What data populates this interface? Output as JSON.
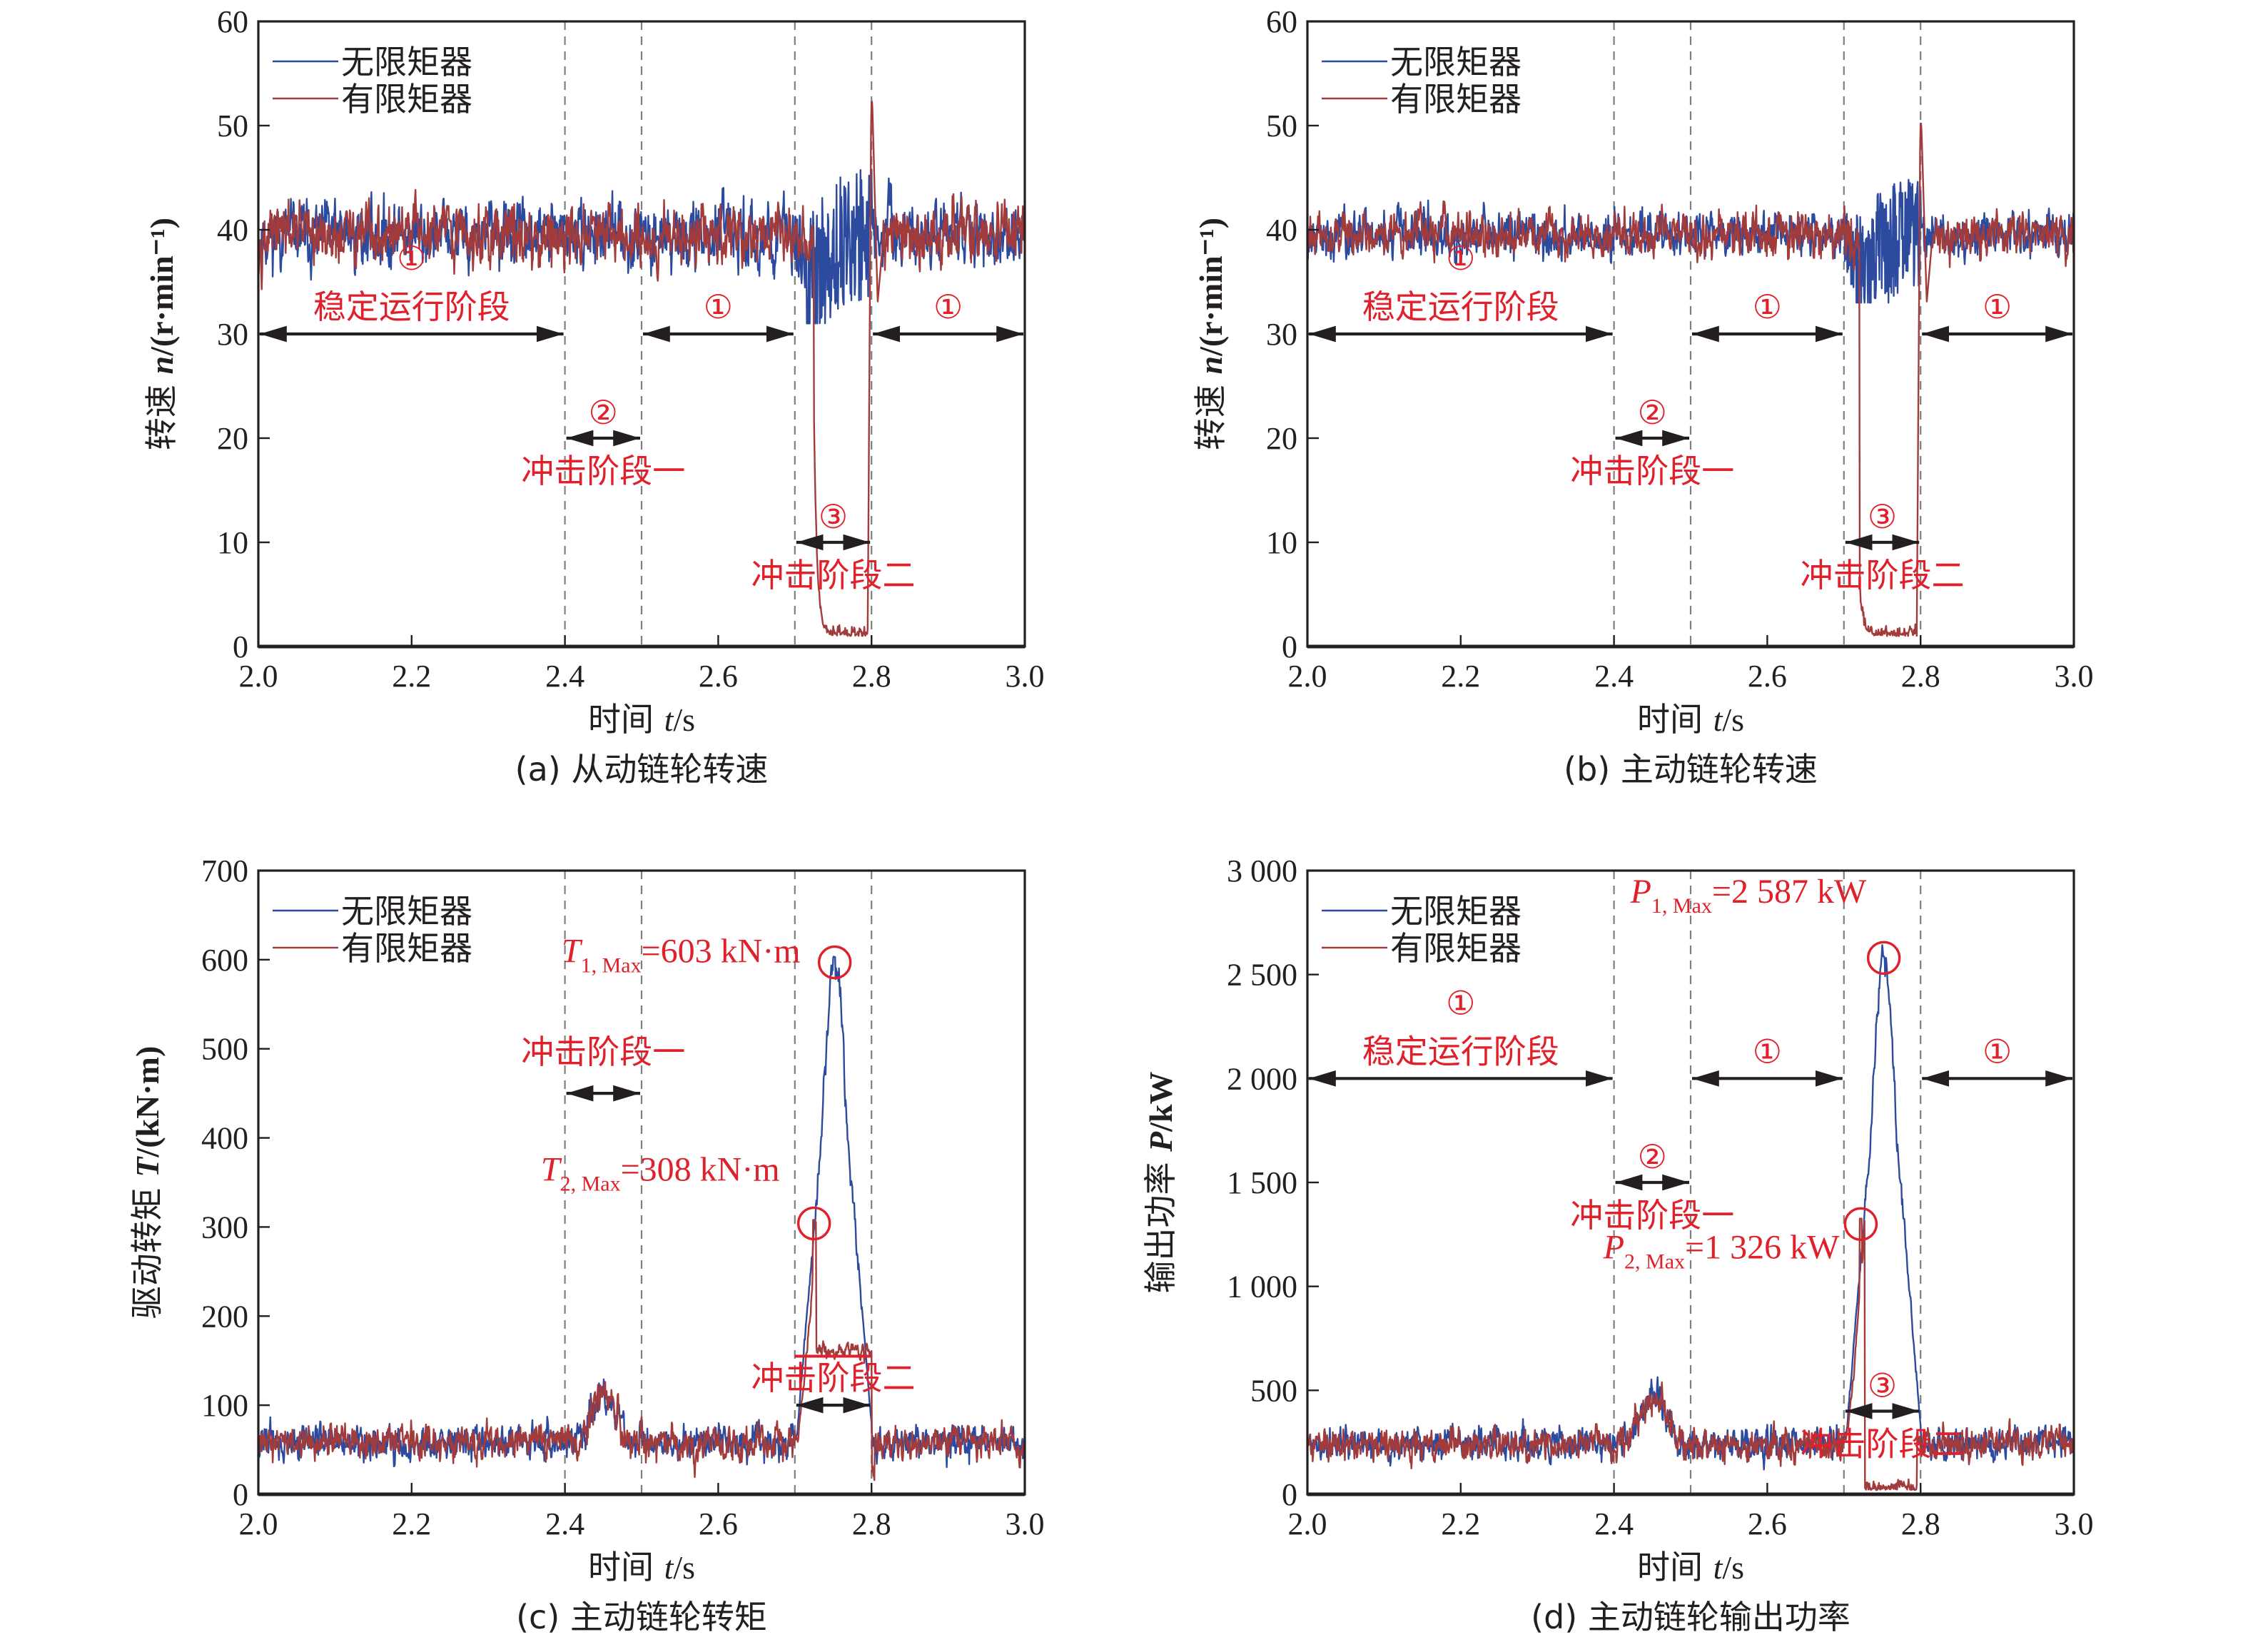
{
  "colors": {
    "no_limiter": "#2c4a9e",
    "with_limiter": "#a23c3c",
    "annotation": "#e0202a",
    "arrow": "#231f20",
    "axis": "#231f20",
    "divider": "#7f7f7f"
  },
  "chart_data": [
    {
      "id": "a",
      "type": "line",
      "caption": "(a) 从动链轮转速",
      "xlabel_prefix": "时间 ",
      "xlabel_var": "t",
      "xlabel_unit": "/s",
      "ylabel_prefix": "转速 ",
      "ylabel_var": "n",
      "ylabel_unit": "/(r·min⁻¹)",
      "xlim": [
        2.0,
        3.0
      ],
      "ylim": [
        0,
        60
      ],
      "xticks": [
        2.0,
        2.2,
        2.4,
        2.6,
        2.8,
        3.0
      ],
      "xtick_labels": [
        "2.0",
        "2.2",
        "2.4",
        "2.6",
        "2.8",
        "3.0"
      ],
      "yticks": [
        0,
        10,
        20,
        30,
        40,
        50,
        60
      ],
      "ytick_labels": [
        "0",
        "10",
        "20",
        "30",
        "40",
        "50",
        "60"
      ],
      "dividers_x": [
        2.4,
        2.5,
        2.7,
        2.8
      ],
      "legend": {
        "position": "top-left",
        "entries": [
          "无限矩器",
          "有限矩器"
        ]
      },
      "series": [
        {
          "name": "无限矩器",
          "baseline": 39.5,
          "noise": 2.6,
          "dip_window": [
            2.7,
            2.8
          ],
          "dip_range": [
            31,
            46
          ]
        },
        {
          "name": "有限矩器",
          "baseline": 39.5,
          "noise": 2.4,
          "drop_window": [
            2.725,
            2.795
          ],
          "drop_level": 1,
          "spike_peak": 52.3,
          "spike_x": 2.797,
          "transient_peak": 20.3,
          "transient_x": 2.73
        }
      ],
      "annotations": [
        {
          "marker": "①",
          "label": "稳定运行阶段",
          "arrow_x": [
            2.0,
            2.4
          ],
          "arrow_y": 30
        },
        {
          "marker": "②",
          "label": "冲击阶段一",
          "arrow_x": [
            2.4,
            2.5
          ],
          "arrow_y": 20
        },
        {
          "marker": "①",
          "label": "",
          "arrow_x": [
            2.5,
            2.7
          ],
          "arrow_y": 30
        },
        {
          "marker": "③",
          "label": "冲击阶段二",
          "arrow_x": [
            2.7,
            2.8
          ],
          "arrow_y": 10
        },
        {
          "marker": "①",
          "label": "",
          "arrow_x": [
            2.8,
            3.0
          ],
          "arrow_y": 30
        }
      ]
    },
    {
      "id": "b",
      "type": "line",
      "caption": "(b) 主动链轮转速",
      "xlabel_prefix": "时间 ",
      "xlabel_var": "t",
      "xlabel_unit": "/s",
      "ylabel_prefix": "转速 ",
      "ylabel_var": "n",
      "ylabel_unit": "/(r·min⁻¹)",
      "xlim": [
        2.0,
        3.0
      ],
      "ylim": [
        0,
        60
      ],
      "xticks": [
        2.0,
        2.2,
        2.4,
        2.6,
        2.8,
        3.0
      ],
      "xtick_labels": [
        "2.0",
        "2.2",
        "2.4",
        "2.6",
        "2.8",
        "3.0"
      ],
      "yticks": [
        0,
        10,
        20,
        30,
        40,
        50,
        60
      ],
      "ytick_labels": [
        "0",
        "10",
        "20",
        "30",
        "40",
        "50",
        "60"
      ],
      "dividers_x": [
        2.4,
        2.5,
        2.7,
        2.8
      ],
      "legend": {
        "position": "top-left",
        "entries": [
          "无限矩器",
          "有限矩器"
        ]
      },
      "series": [
        {
          "name": "无限矩器",
          "baseline": 39.5,
          "noise": 1.8,
          "dip_window": [
            2.7,
            2.8
          ],
          "dip_range": [
            33,
            46
          ]
        },
        {
          "name": "有限矩器",
          "baseline": 39.5,
          "noise": 1.7,
          "drop_window": [
            2.72,
            2.795
          ],
          "drop_level": 1,
          "spike_peak": 50.2,
          "spike_x": 2.797,
          "transient_peak": 5,
          "transient_x": 2.73
        }
      ],
      "annotations": [
        {
          "marker": "①",
          "label": "稳定运行阶段",
          "arrow_x": [
            2.0,
            2.4
          ],
          "arrow_y": 30
        },
        {
          "marker": "②",
          "label": "冲击阶段一",
          "arrow_x": [
            2.4,
            2.5
          ],
          "arrow_y": 20
        },
        {
          "marker": "①",
          "label": "",
          "arrow_x": [
            2.5,
            2.7
          ],
          "arrow_y": 30
        },
        {
          "marker": "③",
          "label": "冲击阶段二",
          "arrow_x": [
            2.7,
            2.8
          ],
          "arrow_y": 10
        },
        {
          "marker": "①",
          "label": "",
          "arrow_x": [
            2.8,
            3.0
          ],
          "arrow_y": 30
        }
      ]
    },
    {
      "id": "c",
      "type": "line",
      "caption": "(c) 主动链轮转矩",
      "xlabel_prefix": "时间 ",
      "xlabel_var": "t",
      "xlabel_unit": "/s",
      "ylabel_prefix": "驱动转矩 ",
      "ylabel_var": "T",
      "ylabel_unit": "/(kN·m)",
      "xlim": [
        2.0,
        3.0
      ],
      "ylim": [
        0,
        700
      ],
      "xticks": [
        2.0,
        2.2,
        2.4,
        2.6,
        2.8,
        3.0
      ],
      "xtick_labels": [
        "2.0",
        "2.2",
        "2.4",
        "2.6",
        "2.8",
        "3.0"
      ],
      "yticks": [
        0,
        100,
        200,
        300,
        400,
        500,
        600,
        700
      ],
      "ytick_labels": [
        "0",
        "100",
        "200",
        "300",
        "400",
        "500",
        "600",
        "700"
      ],
      "dividers_x": [
        2.4,
        2.5,
        2.7,
        2.8
      ],
      "legend": {
        "position": "top-left",
        "entries": [
          "无限矩器",
          "有限矩器"
        ]
      },
      "series": [
        {
          "name": "无限矩器",
          "baseline": 58,
          "noise": 16,
          "bump_peak": 115,
          "bump_x": 2.45,
          "peak": 603,
          "peak_x": 2.752,
          "peak_window": [
            2.7,
            2.8
          ]
        },
        {
          "name": "有限矩器",
          "baseline": 58,
          "noise": 16,
          "bump_peak": 115,
          "bump_x": 2.45,
          "peak": 308,
          "peak_x": 2.725,
          "plateau": 160,
          "plateau_window": [
            2.728,
            2.8
          ]
        }
      ],
      "annotations": [
        {
          "marker": "",
          "label": "冲击阶段一",
          "arrow_x": [
            2.4,
            2.5
          ],
          "arrow_y": 450
        },
        {
          "marker": "",
          "label": "冲击阶段二",
          "arrow_x": [
            2.7,
            2.8
          ],
          "arrow_y": 100
        },
        {
          "marker": "",
          "label": "",
          "line_x": [
            2.7,
            2.8
          ],
          "line_y": 155
        }
      ],
      "peak_labels": [
        {
          "var": "T",
          "sub": "1, Max",
          "text": "=603 kN·m",
          "x": 2.752,
          "y": 597,
          "value": 603
        },
        {
          "var": "T",
          "sub": "2, Max",
          "text": "=308 kN·m",
          "x": 2.725,
          "y": 304,
          "value": 308
        }
      ]
    },
    {
      "id": "d",
      "type": "line",
      "caption": "(d) 主动链轮输出功率",
      "xlabel_prefix": "时间 ",
      "xlabel_var": "t",
      "xlabel_unit": "/s",
      "ylabel_prefix": "输出功率 ",
      "ylabel_var": "P",
      "ylabel_unit": "/kW",
      "xlim": [
        2.0,
        3.0
      ],
      "ylim": [
        0,
        3000
      ],
      "xticks": [
        2.0,
        2.2,
        2.4,
        2.6,
        2.8,
        3.0
      ],
      "xtick_labels": [
        "2.0",
        "2.2",
        "2.4",
        "2.6",
        "2.8",
        "3.0"
      ],
      "yticks": [
        0,
        500,
        1000,
        1500,
        2000,
        2500,
        3000
      ],
      "ytick_labels": [
        "0",
        "500",
        "1 000",
        "1 500",
        "2 000",
        "2 500",
        "3 000"
      ],
      "dividers_x": [
        2.4,
        2.5,
        2.7,
        2.8
      ],
      "legend": {
        "position": "top-left",
        "entries": [
          "无限矩器",
          "有限矩器"
        ]
      },
      "series": [
        {
          "name": "无限矩器",
          "baseline": 240,
          "noise": 65,
          "bump_peak": 480,
          "bump_x": 2.45,
          "peak": 2587,
          "peak_x": 2.752,
          "peak_window": [
            2.7,
            2.8
          ]
        },
        {
          "name": "有限矩器",
          "baseline": 240,
          "noise": 65,
          "bump_peak": 480,
          "bump_x": 2.45,
          "peak": 1326,
          "peak_x": 2.722,
          "drop_window": [
            2.727,
            2.795
          ],
          "drop_level": 20
        }
      ],
      "annotations": [
        {
          "marker": "①",
          "label": "稳定运行阶段",
          "arrow_x": [
            2.0,
            2.4
          ],
          "arrow_y": 2000
        },
        {
          "marker": "②",
          "label": "冲击阶段一",
          "arrow_x": [
            2.4,
            2.5
          ],
          "arrow_y": 1500
        },
        {
          "marker": "①",
          "label": "",
          "arrow_x": [
            2.5,
            2.7
          ],
          "arrow_y": 2000
        },
        {
          "marker": "③",
          "label": "冲击阶段二",
          "arrow_x": [
            2.7,
            2.8
          ],
          "arrow_y": 400
        },
        {
          "marker": "①",
          "label": "",
          "arrow_x": [
            2.8,
            3.0
          ],
          "arrow_y": 2000
        }
      ],
      "peak_labels": [
        {
          "var": "P",
          "sub": "1, Max",
          "text": "=2 587 kW",
          "x": 2.752,
          "y": 2580,
          "value": 2587
        },
        {
          "var": "P",
          "sub": "2, Max",
          "text": "=1 326 kW",
          "x": 2.722,
          "y": 1300,
          "value": 1326
        }
      ]
    }
  ]
}
